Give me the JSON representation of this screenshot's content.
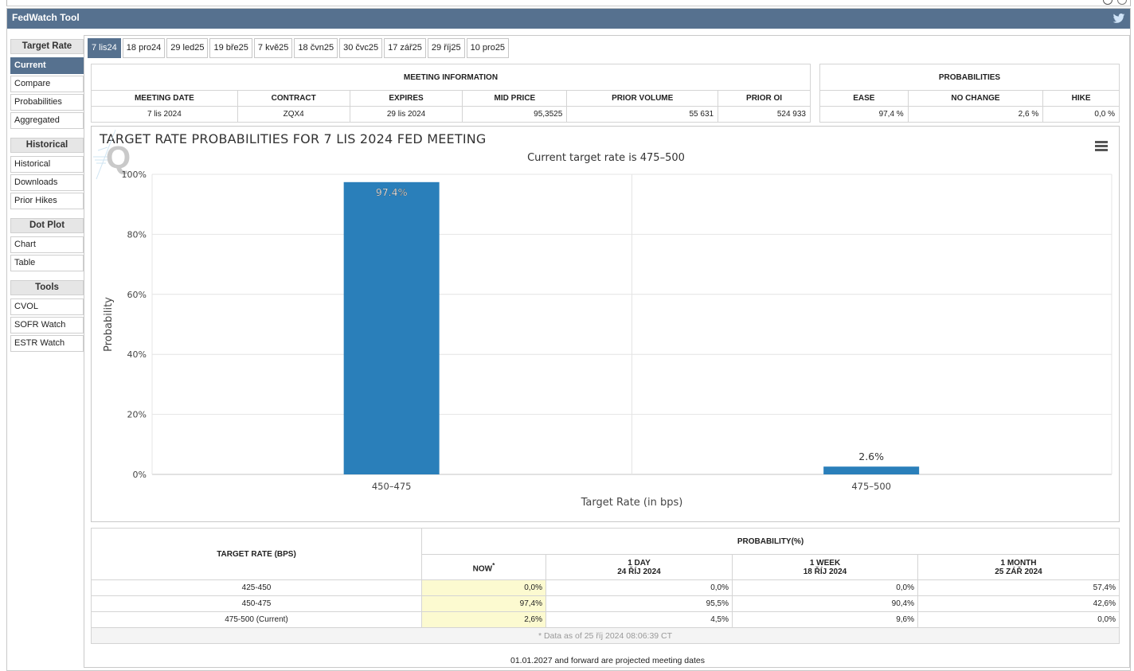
{
  "app": {
    "title": "FedWatch Tool"
  },
  "sidebar": {
    "groups": [
      {
        "head": "Target Rate",
        "items": [
          "Current",
          "Compare",
          "Probabilities",
          "Aggregated"
        ]
      },
      {
        "head": "Historical",
        "items": [
          "Historical",
          "Downloads",
          "Prior Hikes"
        ]
      },
      {
        "head": "Dot Plot",
        "items": [
          "Chart",
          "Table"
        ]
      },
      {
        "head": "Tools",
        "items": [
          "CVOL",
          "SOFR Watch",
          "ESTR Watch"
        ]
      }
    ],
    "active": "Current"
  },
  "tabs": [
    "7 lis24",
    "18 pro24",
    "29 led25",
    "19 bře25",
    "7 kvě25",
    "18 čvn25",
    "30 čvc25",
    "17 zář25",
    "29 říj25",
    "10 pro25"
  ],
  "meeting_info": {
    "header": "MEETING INFORMATION",
    "columns": [
      "MEETING DATE",
      "CONTRACT",
      "EXPIRES",
      "MID PRICE",
      "PRIOR VOLUME",
      "PRIOR OI"
    ],
    "values": [
      "7 lis 2024",
      "ZQX4",
      "29 lis 2024",
      "95,3525",
      "55 631",
      "524 933"
    ]
  },
  "probabilities": {
    "header": "PROBABILITIES",
    "columns": [
      "EASE",
      "NO CHANGE",
      "HIKE"
    ],
    "values": [
      "97,4 %",
      "2,6 %",
      "0,0 %"
    ]
  },
  "chart": {
    "title": "TARGET RATE PROBABILITIES FOR 7 LIS 2024 FED MEETING",
    "subtitle": "Current target rate is 475–500"
  },
  "chart_data": {
    "type": "bar",
    "title": "TARGET RATE PROBABILITIES FOR 7 LIS 2024 FED MEETING",
    "subtitle": "Current target rate is 475–500",
    "categories": [
      "450–475",
      "475–500"
    ],
    "values": [
      97.4,
      2.6
    ],
    "data_labels": [
      "97.4%",
      "2.6%"
    ],
    "xlabel": "Target Rate (in bps)",
    "ylabel": "Probability",
    "ylim": [
      0,
      100
    ],
    "yticks": [
      "0%",
      "20%",
      "40%",
      "60%",
      "80%",
      "100%"
    ],
    "grid": true,
    "bar_color": "#2a7fba"
  },
  "prob_table": {
    "rate_header": "TARGET RATE (BPS)",
    "prob_header": "PROBABILITY(%)",
    "cols": [
      {
        "l1": "NOW",
        "l2": "",
        "sup": "*"
      },
      {
        "l1": "1 DAY",
        "l2": "24 ŘÍJ 2024",
        "sup": ""
      },
      {
        "l1": "1 WEEK",
        "l2": "18 ŘÍJ 2024",
        "sup": ""
      },
      {
        "l1": "1 MONTH",
        "l2": "25 ZÁŘ 2024",
        "sup": ""
      }
    ],
    "rows": [
      {
        "rate": "425-450",
        "vals": [
          "0,0%",
          "0,0%",
          "0,0%",
          "57,4%"
        ]
      },
      {
        "rate": "450-475",
        "vals": [
          "97,4%",
          "95,5%",
          "90,4%",
          "42,6%"
        ]
      },
      {
        "rate": "475-500 (Current)",
        "vals": [
          "2,6%",
          "4,5%",
          "9,6%",
          "0,0%"
        ]
      }
    ],
    "note": "* Data as of 25 říj 2024 08:06:39 CT"
  },
  "footer": "01.01.2027 and forward are projected meeting dates",
  "colors": {
    "header": "#56718f",
    "bar": "#2a7fba",
    "now_bg": "#fcfad0"
  }
}
